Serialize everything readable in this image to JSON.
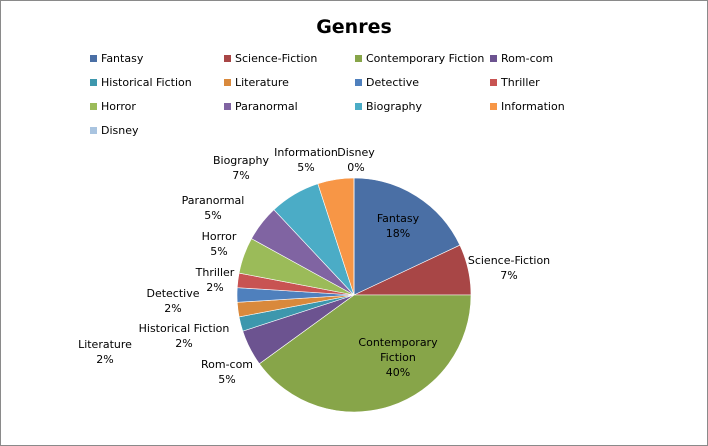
{
  "chart_data": {
    "type": "pie",
    "title": "Genres",
    "legend_position": "top",
    "categories": [
      "Fantasy",
      "Science-Fiction",
      "Contemporary Fiction",
      "Rom-com",
      "Historical Fiction",
      "Literature",
      "Detective",
      "Thriller",
      "Horror",
      "Paranormal",
      "Biography",
      "Information",
      "Disney"
    ],
    "values": [
      18,
      7,
      40,
      5,
      2,
      2,
      2,
      2,
      5,
      5,
      7,
      5,
      0
    ],
    "value_labels": [
      "18%",
      "7%",
      "40%",
      "5%",
      "2%",
      "2%",
      "2%",
      "2%",
      "5%",
      "5%",
      "7%",
      "5%",
      "0%"
    ],
    "colors": [
      "#4a6fa5",
      "#a84646",
      "#87a549",
      "#6c5390",
      "#3d97ad",
      "#d9893c",
      "#4f80bd",
      "#c85352",
      "#9bbb59",
      "#8064a2",
      "#4bacc6",
      "#f79646",
      "#a9c4e0"
    ]
  }
}
